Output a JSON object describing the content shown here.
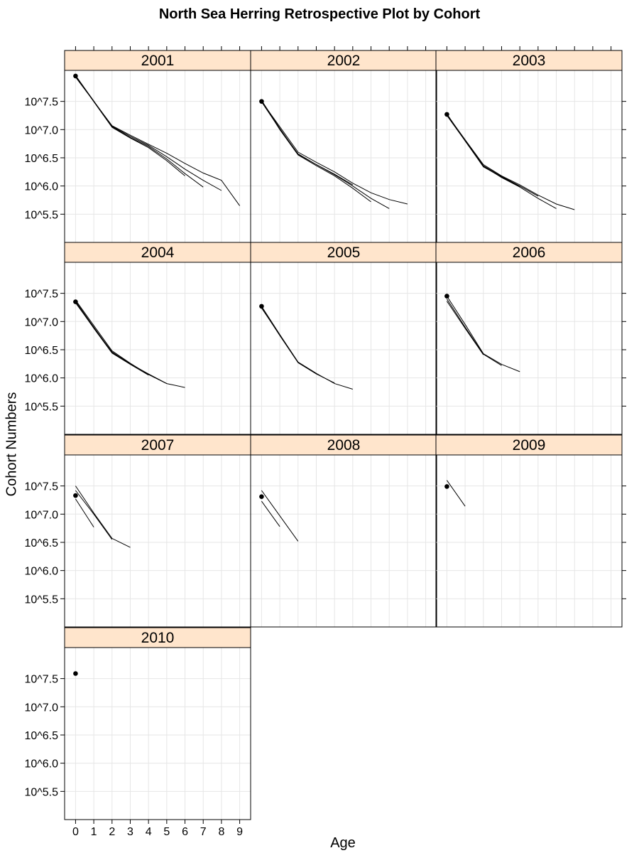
{
  "title": "North Sea Herring Retrospective Plot by Cohort",
  "colors": {
    "strip_background": "#ffe5cc",
    "grid": "#e6e6e6",
    "panel_border": "#000000",
    "line": "#000000",
    "point": "#000000"
  },
  "chart_data": {
    "type": "line",
    "title": "North Sea Herring Retrospective Plot by Cohort",
    "xlabel": "Age",
    "ylabel": "Cohort Numbers",
    "x_ticks": [
      0,
      1,
      2,
      3,
      4,
      5,
      6,
      7,
      8,
      9
    ],
    "y_ticks": [
      5.5,
      6.0,
      6.5,
      7.0,
      7.5
    ],
    "y_tick_labels": [
      "10^5.5",
      "10^6.0",
      "10^6.5",
      "10^7.0",
      "10^7.5"
    ],
    "xlim": [
      -0.6,
      9.6
    ],
    "ylim": [
      5.0,
      8.05
    ],
    "y_scale": "log10",
    "grid": true,
    "layout": "3 columns x 4 rows",
    "panels": [
      {
        "cohort": "2001",
        "point": [
          0,
          7.95
        ],
        "series": [
          {
            "x": [
              0,
              2,
              3,
              4,
              5,
              6,
              7,
              8,
              9
            ],
            "y": [
              7.93,
              7.07,
              6.9,
              6.74,
              6.58,
              6.4,
              6.23,
              6.1,
              5.65
            ]
          },
          {
            "x": [
              0,
              2,
              3,
              4,
              5,
              6,
              7,
              8
            ],
            "y": [
              7.95,
              7.06,
              6.88,
              6.72,
              6.52,
              6.3,
              6.1,
              5.92
            ]
          },
          {
            "x": [
              0,
              2,
              3,
              4,
              5,
              6,
              7
            ],
            "y": [
              7.96,
              7.05,
              6.86,
              6.7,
              6.48,
              6.22,
              5.98
            ]
          },
          {
            "x": [
              0,
              2,
              3,
              4,
              5,
              6
            ],
            "y": [
              7.95,
              7.04,
              6.85,
              6.68,
              6.45,
              6.18
            ]
          }
        ]
      },
      {
        "cohort": "2002",
        "point": [
          0,
          7.5
        ],
        "series": [
          {
            "x": [
              0,
              1,
              2,
              3,
              4,
              5,
              6,
              7,
              8
            ],
            "y": [
              7.5,
              7.05,
              6.6,
              6.42,
              6.25,
              6.05,
              5.88,
              5.76,
              5.68
            ]
          },
          {
            "x": [
              0,
              1,
              2,
              3,
              4,
              5,
              6,
              7
            ],
            "y": [
              7.52,
              7.02,
              6.56,
              6.38,
              6.2,
              6.0,
              5.78,
              5.6
            ]
          },
          {
            "x": [
              0,
              1,
              2,
              3,
              4,
              5,
              6
            ],
            "y": [
              7.51,
              7.0,
              6.55,
              6.36,
              6.18,
              5.96,
              5.72
            ]
          },
          {
            "x": [
              0,
              1,
              2,
              3,
              4,
              5
            ],
            "y": [
              7.49,
              7.01,
              6.57,
              6.38,
              6.21,
              6.02
            ]
          }
        ]
      },
      {
        "cohort": "2003",
        "point": [
          0,
          7.27
        ],
        "series": [
          {
            "x": [
              0,
              1,
              2,
              3,
              4,
              5,
              6,
              7
            ],
            "y": [
              7.27,
              6.82,
              6.38,
              6.18,
              6.02,
              5.84,
              5.68,
              5.58
            ]
          },
          {
            "x": [
              0,
              1,
              2,
              3,
              4,
              5,
              6
            ],
            "y": [
              7.28,
              6.8,
              6.35,
              6.15,
              5.98,
              5.78,
              5.6
            ]
          },
          {
            "x": [
              0,
              1,
              2,
              3,
              4,
              5
            ],
            "y": [
              7.26,
              6.81,
              6.36,
              6.17,
              6.0,
              5.82
            ]
          },
          {
            "x": [
              0,
              1,
              2,
              3,
              4
            ],
            "y": [
              7.25,
              6.8,
              6.34,
              6.16,
              5.99
            ]
          }
        ]
      },
      {
        "cohort": "2004",
        "point": [
          0,
          7.35
        ],
        "series": [
          {
            "x": [
              0,
              1,
              2,
              3,
              4,
              5,
              6
            ],
            "y": [
              7.38,
              6.93,
              6.48,
              6.26,
              6.06,
              5.9,
              5.83
            ]
          },
          {
            "x": [
              0,
              1,
              2,
              3,
              4,
              5
            ],
            "y": [
              7.36,
              6.9,
              6.45,
              6.25,
              6.07,
              5.9
            ]
          },
          {
            "x": [
              0,
              1,
              2,
              3,
              4
            ],
            "y": [
              7.34,
              6.88,
              6.44,
              6.24,
              6.05
            ]
          },
          {
            "x": [
              0,
              1,
              2,
              3
            ],
            "y": [
              7.33,
              6.89,
              6.46,
              6.25
            ]
          }
        ]
      },
      {
        "cohort": "2005",
        "point": [
          0,
          7.27
        ],
        "series": [
          {
            "x": [
              0,
              1,
              2,
              3,
              4,
              5
            ],
            "y": [
              7.27,
              6.77,
              6.28,
              6.08,
              5.9,
              5.8
            ]
          },
          {
            "x": [
              0,
              1,
              2,
              3,
              4
            ],
            "y": [
              7.25,
              6.75,
              6.27,
              6.07,
              5.91
            ]
          },
          {
            "x": [
              0,
              1,
              2,
              3
            ],
            "y": [
              7.24,
              6.76,
              6.28,
              6.08
            ]
          }
        ]
      },
      {
        "cohort": "2006",
        "point": [
          0,
          7.45
        ],
        "series": [
          {
            "x": [
              0,
              1,
              2,
              3,
              4
            ],
            "y": [
              7.45,
              6.95,
              6.43,
              6.24,
              6.11
            ]
          },
          {
            "x": [
              0,
              1,
              2,
              3
            ],
            "y": [
              7.4,
              6.9,
              6.42,
              6.22
            ]
          },
          {
            "x": [
              0,
              1,
              2
            ],
            "y": [
              7.36,
              6.88,
              6.41
            ]
          }
        ]
      },
      {
        "cohort": "2007",
        "point": [
          0,
          7.33
        ],
        "series": [
          {
            "x": [
              0,
              1,
              2,
              3
            ],
            "y": [
              7.5,
              7.02,
              6.57,
              6.41
            ]
          },
          {
            "x": [
              0,
              1,
              2
            ],
            "y": [
              7.42,
              7.0,
              6.55
            ]
          },
          {
            "x": [
              0,
              1
            ],
            "y": [
              7.27,
              6.77
            ]
          }
        ]
      },
      {
        "cohort": "2008",
        "point": [
          0,
          7.31
        ],
        "series": [
          {
            "x": [
              0,
              1,
              2
            ],
            "y": [
              7.42,
              6.97,
              6.52
            ]
          },
          {
            "x": [
              0,
              1
            ],
            "y": [
              7.23,
              6.78
            ]
          }
        ]
      },
      {
        "cohort": "2009",
        "point": [
          0,
          7.49
        ],
        "series": [
          {
            "x": [
              0,
              1
            ],
            "y": [
              7.6,
              7.14
            ]
          }
        ]
      },
      {
        "cohort": "2010",
        "point": [
          0,
          7.59
        ],
        "series": []
      }
    ]
  }
}
